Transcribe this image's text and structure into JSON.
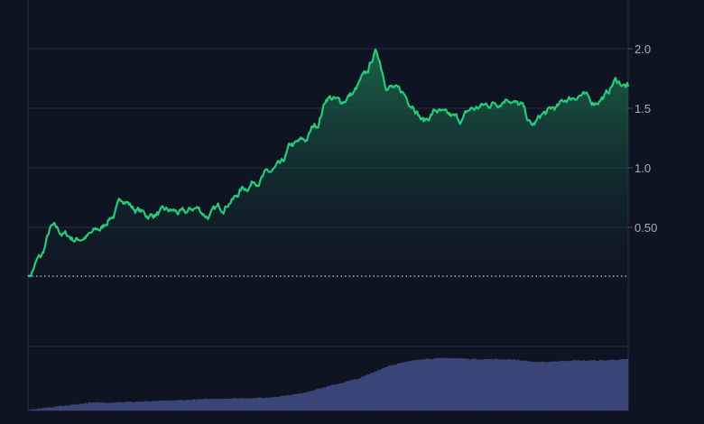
{
  "chart_data": {
    "type": "area",
    "title": "",
    "xlabel": "",
    "ylabel": "",
    "y_axis": {
      "position": "right",
      "ticks": [
        0.5,
        1.0,
        1.5,
        2.0
      ],
      "tick_labels": [
        "0.50",
        "1.0",
        "1.5",
        "2.0"
      ],
      "range": [
        -0.5,
        2.4
      ]
    },
    "grid": true,
    "baseline_value": 0.09,
    "price_series": {
      "color": "#27c97a",
      "x": [
        0,
        2,
        4,
        6,
        8,
        10,
        12,
        14,
        16,
        18,
        20,
        22,
        24,
        26,
        28,
        30,
        32,
        34,
        36,
        38,
        40,
        42,
        44,
        46,
        48,
        50,
        52,
        54,
        56,
        58,
        60,
        62,
        64,
        66,
        68,
        70,
        72,
        74,
        76,
        78,
        80,
        82,
        84,
        86,
        88,
        90,
        92,
        94,
        96,
        98,
        100
      ],
      "y": [
        0.09,
        0.24,
        0.49,
        0.44,
        0.4,
        0.43,
        0.48,
        0.6,
        0.74,
        0.65,
        0.6,
        0.62,
        0.63,
        0.61,
        0.66,
        0.6,
        0.66,
        0.74,
        0.83,
        0.9,
        0.95,
        1.0,
        1.18,
        1.22,
        1.36,
        1.6,
        1.55,
        1.62,
        1.75,
        1.96,
        1.7,
        1.63,
        1.55,
        1.4,
        1.48,
        1.42,
        1.4,
        1.49,
        1.52,
        1.55,
        1.6,
        1.52,
        1.35,
        1.45,
        1.5,
        1.58,
        1.62,
        1.55,
        1.6,
        1.73,
        1.68
      ]
    },
    "volume_series": {
      "color": "#3b4577",
      "x": [
        0,
        10,
        20,
        30,
        40,
        45,
        50,
        55,
        60,
        65,
        70,
        75,
        80,
        85,
        90,
        95,
        100
      ],
      "values": [
        0.01,
        0.12,
        0.14,
        0.18,
        0.2,
        0.26,
        0.38,
        0.5,
        0.7,
        0.8,
        0.82,
        0.8,
        0.8,
        0.75,
        0.78,
        0.78,
        0.8
      ]
    }
  }
}
